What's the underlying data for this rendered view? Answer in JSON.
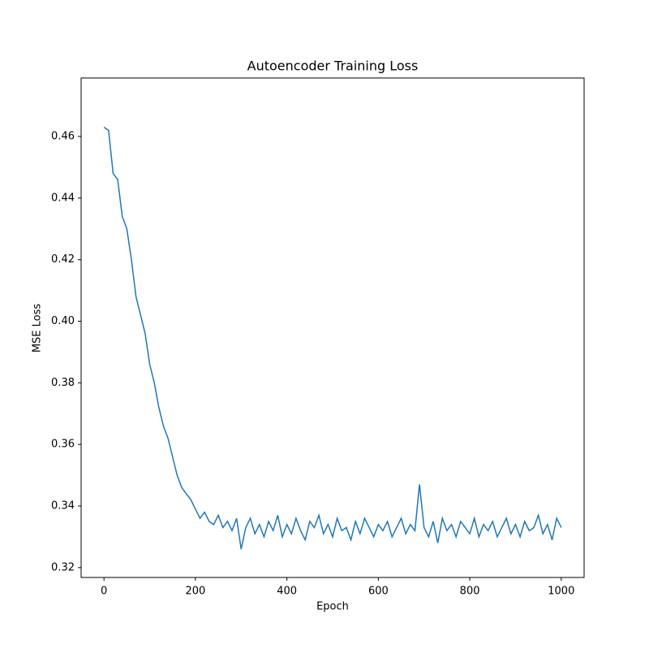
{
  "chart_data": {
    "type": "line",
    "title": "Autoencoder Training Loss",
    "x_label": "Epoch",
    "y_label": "MSE Loss",
    "x": [
      0,
      10,
      20,
      30,
      40,
      50,
      60,
      70,
      80,
      90,
      100,
      110,
      120,
      130,
      140,
      150,
      160,
      170,
      180,
      190,
      200,
      210,
      220,
      230,
      240,
      250,
      260,
      270,
      280,
      290,
      300,
      310,
      320,
      330,
      340,
      350,
      360,
      370,
      380,
      390,
      400,
      410,
      420,
      430,
      440,
      450,
      460,
      470,
      480,
      490,
      500,
      510,
      520,
      530,
      540,
      550,
      560,
      570,
      580,
      590,
      600,
      610,
      620,
      630,
      640,
      650,
      660,
      670,
      680,
      690,
      700,
      710,
      720,
      730,
      740,
      750,
      760,
      770,
      780,
      790,
      800,
      810,
      820,
      830,
      840,
      850,
      860,
      870,
      880,
      890,
      900,
      910,
      920,
      930,
      940,
      950,
      960,
      970,
      980,
      990,
      1000
    ],
    "series": [
      {
        "color": "#1f77b4",
        "values": [
          0.463,
          0.462,
          0.448,
          0.446,
          0.434,
          0.43,
          0.42,
          0.408,
          0.402,
          0.396,
          0.386,
          0.38,
          0.372,
          0.366,
          0.362,
          0.356,
          0.35,
          0.346,
          0.344,
          0.342,
          0.339,
          0.336,
          0.338,
          0.335,
          0.334,
          0.337,
          0.333,
          0.335,
          0.332,
          0.336,
          0.326,
          0.333,
          0.336,
          0.331,
          0.334,
          0.33,
          0.335,
          0.332,
          0.337,
          0.33,
          0.334,
          0.331,
          0.336,
          0.332,
          0.329,
          0.335,
          0.333,
          0.337,
          0.331,
          0.334,
          0.33,
          0.336,
          0.332,
          0.333,
          0.329,
          0.335,
          0.331,
          0.336,
          0.333,
          0.33,
          0.334,
          0.332,
          0.335,
          0.33,
          0.333,
          0.336,
          0.331,
          0.334,
          0.332,
          0.347,
          0.333,
          0.33,
          0.335,
          0.328,
          0.336,
          0.332,
          0.334,
          0.33,
          0.335,
          0.333,
          0.331,
          0.336,
          0.33,
          0.334,
          0.332,
          0.335,
          0.33,
          0.333,
          0.336,
          0.331,
          0.334,
          0.33,
          0.335,
          0.332,
          0.333,
          0.337,
          0.331,
          0.334,
          0.329,
          0.336,
          0.333
        ]
      }
    ],
    "xlim": [
      -50,
      1050
    ],
    "ylim": [
      0.3168,
      0.479
    ],
    "xticks": [
      0,
      200,
      400,
      600,
      800,
      1000
    ],
    "yticks": [
      0.32,
      0.34,
      0.36,
      0.38,
      {
        "value": 0.4,
        "label": "0.40"
      },
      0.42,
      0.44,
      0.46
    ]
  }
}
